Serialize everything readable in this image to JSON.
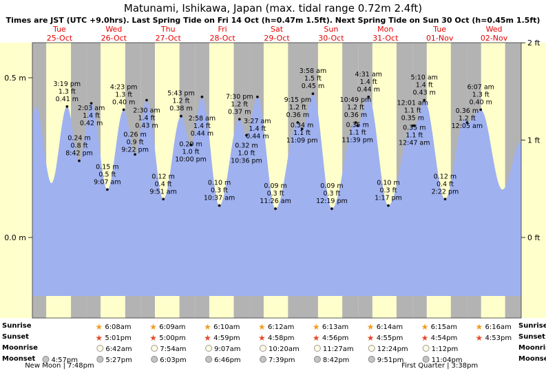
{
  "title": "Matunami, Ishikawa, Japan (max. tidal range 0.72m 2.4ft)",
  "subtitle": "Times are JST (UTC +9.0hrs). Last Spring Tide on Fri 14 Oct (h=0.47m 1.5ft). Next Spring Tide on Sun 30 Oct (h=0.45m 1.5ft)",
  "colors": {
    "tide_fill": "#9fb1ef",
    "day_band": "#ffffcc",
    "night_band": "#b3b3b3",
    "date_red": "#e60000",
    "plot_border": "#333333",
    "sunrise_star": "#f29b1d",
    "sunset_star": "#e5492a",
    "moonrise_fill": "#fdfbe1",
    "moonrise_stroke": "#999999",
    "moonset_fill": "#c4c4c4",
    "moonset_stroke": "#878787",
    "annotation_text": "#000000"
  },
  "days": [
    {
      "name": "Tue",
      "date": "25-Oct"
    },
    {
      "name": "Wed",
      "date": "26-Oct"
    },
    {
      "name": "Thu",
      "date": "27-Oct"
    },
    {
      "name": "Fri",
      "date": "28-Oct"
    },
    {
      "name": "Sat",
      "date": "29-Oct"
    },
    {
      "name": "Sun",
      "date": "30-Oct"
    },
    {
      "name": "Mon",
      "date": "31-Oct"
    },
    {
      "name": "Tue",
      "date": "01-Nov"
    },
    {
      "name": "Wed",
      "date": "02-Nov"
    }
  ],
  "axis": {
    "left": [
      {
        "label": "0.5 m",
        "meters": 0.5
      },
      {
        "label": "0.0 m",
        "meters": 0.0
      }
    ],
    "right": [
      {
        "label": "2 ft",
        "meters": 0.6096
      },
      {
        "label": "1 ft",
        "meters": 0.3048
      },
      {
        "label": "0 ft",
        "meters": 0.0
      }
    ]
  },
  "chart_data": {
    "type": "area",
    "title": "Tide height curve",
    "ylabel_left_unit": "m",
    "ylabel_right_unit": "ft",
    "ylim_m": [
      -0.25,
      0.61
    ],
    "tide_events": [
      {
        "day": 0,
        "time": "",
        "hours": 0.0,
        "height_m": 0.39,
        "height_ft": 1.3,
        "type": "anchor",
        "labeled": false
      },
      {
        "day": 0,
        "time": "",
        "hours": 1.63,
        "height_m": 0.41,
        "height_ft": 1.3,
        "type": "high",
        "labeled": false
      },
      {
        "day": 0,
        "time": "",
        "hours": 8.42,
        "height_m": 0.17,
        "height_ft": 0.6,
        "type": "low",
        "labeled": false
      },
      {
        "day": 0,
        "time": "3:19 pm",
        "hours": 15.32,
        "height_m": 0.41,
        "height_ft": 1.3,
        "type": "high",
        "labeled": true
      },
      {
        "day": 0,
        "time": "8:42 pm",
        "hours": 20.7,
        "height_m": 0.24,
        "height_ft": 0.8,
        "type": "low",
        "labeled": true
      },
      {
        "day": 1,
        "time": "2:03 am",
        "hours": 2.05,
        "height_m": 0.42,
        "height_ft": 1.4,
        "type": "high",
        "labeled": true
      },
      {
        "day": 1,
        "time": "9:07 am",
        "hours": 9.12,
        "height_m": 0.15,
        "height_ft": 0.5,
        "type": "low",
        "labeled": true
      },
      {
        "day": 1,
        "time": "4:23 pm",
        "hours": 16.38,
        "height_m": 0.4,
        "height_ft": 1.3,
        "type": "high",
        "labeled": true
      },
      {
        "day": 1,
        "time": "9:22 pm",
        "hours": 21.37,
        "height_m": 0.26,
        "height_ft": 0.9,
        "type": "low",
        "labeled": true
      },
      {
        "day": 2,
        "time": "2:30 am",
        "hours": 2.5,
        "height_m": 0.43,
        "height_ft": 1.4,
        "type": "high",
        "labeled": true
      },
      {
        "day": 2,
        "time": "9:51 am",
        "hours": 9.85,
        "height_m": 0.12,
        "height_ft": 0.4,
        "type": "low",
        "labeled": true
      },
      {
        "day": 2,
        "time": "5:43 pm",
        "hours": 17.72,
        "height_m": 0.38,
        "height_ft": 1.2,
        "type": "high",
        "labeled": true
      },
      {
        "day": 2,
        "time": "10:00 pm",
        "hours": 22.0,
        "height_m": 0.29,
        "height_ft": 1.0,
        "type": "low",
        "labeled": true
      },
      {
        "day": 3,
        "time": "2:58 am",
        "hours": 2.97,
        "height_m": 0.44,
        "height_ft": 1.4,
        "type": "high",
        "labeled": true
      },
      {
        "day": 3,
        "time": "10:37 am",
        "hours": 10.62,
        "height_m": 0.1,
        "height_ft": 0.3,
        "type": "low",
        "labeled": true
      },
      {
        "day": 3,
        "time": "7:30 pm",
        "hours": 19.5,
        "height_m": 0.37,
        "height_ft": 1.2,
        "type": "high",
        "labeled": true
      },
      {
        "day": 3,
        "time": "10:36 pm",
        "hours": 22.6,
        "height_m": 0.32,
        "height_ft": 1.0,
        "type": "low",
        "labeled": true
      },
      {
        "day": 4,
        "time": "3:27 am",
        "hours": 3.45,
        "height_m": 0.44,
        "height_ft": 1.4,
        "type": "high",
        "labeled": true
      },
      {
        "day": 4,
        "time": "11:26 am",
        "hours": 11.43,
        "height_m": 0.09,
        "height_ft": 0.3,
        "type": "low",
        "labeled": true
      },
      {
        "day": 4,
        "time": "9:15 pm",
        "hours": 21.25,
        "height_m": 0.36,
        "height_ft": 1.2,
        "type": "high",
        "labeled": true
      },
      {
        "day": 4,
        "time": "11:09 pm",
        "hours": 23.15,
        "height_m": 0.34,
        "height_ft": 1.1,
        "type": "low",
        "labeled": true
      },
      {
        "day": 5,
        "time": "3:58 am",
        "hours": 3.97,
        "height_m": 0.45,
        "height_ft": 1.5,
        "type": "high",
        "labeled": true
      },
      {
        "day": 5,
        "time": "12:19 pm",
        "hours": 12.32,
        "height_m": 0.09,
        "height_ft": 0.3,
        "type": "low",
        "labeled": true
      },
      {
        "day": 5,
        "time": "10:49 pm",
        "hours": 22.82,
        "height_m": 0.36,
        "height_ft": 1.2,
        "type": "high",
        "labeled": true
      },
      {
        "day": 5,
        "time": "11:39 pm",
        "hours": 23.65,
        "height_m": 0.35,
        "height_ft": 1.1,
        "type": "low",
        "labeled": true
      },
      {
        "day": 6,
        "time": "4:31 am",
        "hours": 4.52,
        "height_m": 0.44,
        "height_ft": 1.4,
        "type": "high",
        "labeled": true
      },
      {
        "day": 6,
        "time": "1:17 pm",
        "hours": 13.28,
        "height_m": 0.1,
        "height_ft": 0.3,
        "type": "low",
        "labeled": true
      },
      {
        "day": 7,
        "time": "12:01 am",
        "hours": 0.02,
        "height_m": 0.35,
        "height_ft": 1.1,
        "type": "high",
        "labeled": true
      },
      {
        "day": 7,
        "time": "12:47 am",
        "hours": 0.78,
        "height_m": 0.35,
        "height_ft": 1.1,
        "type": "low",
        "labeled": true
      },
      {
        "day": 7,
        "time": "5:10 am",
        "hours": 5.17,
        "height_m": 0.43,
        "height_ft": 1.4,
        "type": "high",
        "labeled": true
      },
      {
        "day": 7,
        "time": "2:22 pm",
        "hours": 14.37,
        "height_m": 0.12,
        "height_ft": 0.4,
        "type": "low",
        "labeled": true
      },
      {
        "day": 7,
        "time": "",
        "hours": 23.0,
        "height_m": 0.37,
        "height_ft": 1.2,
        "type": "high",
        "labeled": false
      },
      {
        "day": 8,
        "time": "12:05 am",
        "hours": 0.08,
        "height_m": 0.36,
        "height_ft": 1.2,
        "type": "low",
        "labeled": true
      },
      {
        "day": 8,
        "time": "6:07 am",
        "hours": 6.12,
        "height_m": 0.4,
        "height_ft": 1.3,
        "type": "high",
        "labeled": true
      },
      {
        "day": 8,
        "time": "",
        "hours": 15.7,
        "height_m": 0.15,
        "height_ft": 0.5,
        "type": "low",
        "labeled": false
      },
      {
        "day": 8,
        "time": "",
        "hours": 23.99,
        "height_m": 0.3,
        "height_ft": 1.0,
        "type": "high",
        "labeled": false
      }
    ]
  },
  "sun_moon": {
    "sunrise": {
      "side_label": "Sunrise",
      "entries": [
        {
          "day": 1,
          "time": "6:08am"
        },
        {
          "day": 2,
          "time": "6:09am"
        },
        {
          "day": 3,
          "time": "6:10am"
        },
        {
          "day": 4,
          "time": "6:12am"
        },
        {
          "day": 5,
          "time": "6:13am"
        },
        {
          "day": 6,
          "time": "6:14am"
        },
        {
          "day": 7,
          "time": "6:15am"
        },
        {
          "day": 8,
          "time": "6:16am"
        }
      ]
    },
    "sunset": {
      "side_label": "Sunset",
      "entries": [
        {
          "day": 1,
          "time": "5:01pm"
        },
        {
          "day": 2,
          "time": "5:00pm"
        },
        {
          "day": 3,
          "time": "4:59pm"
        },
        {
          "day": 4,
          "time": "4:58pm"
        },
        {
          "day": 5,
          "time": "4:56pm"
        },
        {
          "day": 6,
          "time": "4:55pm"
        },
        {
          "day": 7,
          "time": "4:54pm"
        },
        {
          "day": 8,
          "time": "4:53pm"
        }
      ]
    },
    "moonrise": {
      "side_label": "Moonrise",
      "entries": [
        {
          "day": 1,
          "time": "6:42am"
        },
        {
          "day": 2,
          "time": "7:54am"
        },
        {
          "day": 3,
          "time": "9:07am"
        },
        {
          "day": 4,
          "time": "10:20am"
        },
        {
          "day": 5,
          "time": "11:27am"
        },
        {
          "day": 6,
          "time": "12:24pm"
        },
        {
          "day": 7,
          "time": "1:12pm"
        }
      ]
    },
    "moonset": {
      "side_label": "Moonset",
      "entries": [
        {
          "day": 0,
          "time": "4:57pm"
        },
        {
          "day": 1,
          "time": "5:27pm"
        },
        {
          "day": 2,
          "time": "6:03pm"
        },
        {
          "day": 3,
          "time": "6:46pm"
        },
        {
          "day": 4,
          "time": "7:39pm"
        },
        {
          "day": 5,
          "time": "8:42pm"
        },
        {
          "day": 6,
          "time": "9:51pm"
        },
        {
          "day": 7,
          "time": "11:04pm"
        }
      ]
    }
  },
  "moon_phases": [
    {
      "text": "New Moon | 7:48pm",
      "day": 0
    },
    {
      "text": "First Quarter | 3:38pm",
      "day": 7
    }
  ]
}
